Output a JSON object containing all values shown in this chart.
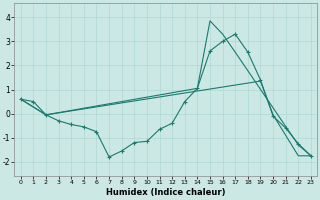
{
  "xlabel": "Humidex (Indice chaleur)",
  "bg_color": "#cce8e4",
  "grid_color": "#b0d8d4",
  "line_color": "#1a7a6e",
  "xlim": [
    -0.5,
    23.5
  ],
  "ylim": [
    -2.6,
    4.6
  ],
  "xticks": [
    0,
    1,
    2,
    3,
    4,
    5,
    6,
    7,
    8,
    9,
    10,
    11,
    12,
    13,
    14,
    15,
    16,
    17,
    18,
    19,
    20,
    21,
    22,
    23
  ],
  "yticks": [
    -2,
    -1,
    0,
    1,
    2,
    3,
    4
  ],
  "line1": {
    "x": [
      0,
      1,
      2,
      3,
      4,
      5,
      6,
      7,
      8,
      9,
      10,
      11,
      12,
      13,
      14,
      15,
      16,
      17,
      18,
      19,
      20,
      21,
      22,
      23
    ],
    "y": [
      0.6,
      0.5,
      -0.05,
      -0.3,
      -0.45,
      -0.55,
      -0.75,
      -1.8,
      -1.55,
      -1.2,
      -1.15,
      -0.65,
      -0.4,
      0.5,
      1.05,
      2.6,
      3.0,
      3.3,
      2.55,
      1.4,
      -0.1,
      -0.6,
      -1.25,
      -1.75
    ]
  },
  "line2": {
    "x": [
      0,
      2,
      19,
      20,
      22,
      23
    ],
    "y": [
      0.6,
      -0.05,
      1.35,
      -0.05,
      -1.75,
      -1.75
    ]
  },
  "line3": {
    "x": [
      0,
      2,
      14,
      15,
      16,
      17,
      22,
      23
    ],
    "y": [
      0.6,
      -0.05,
      1.05,
      3.85,
      3.3,
      2.55,
      -1.3,
      -1.75
    ]
  }
}
